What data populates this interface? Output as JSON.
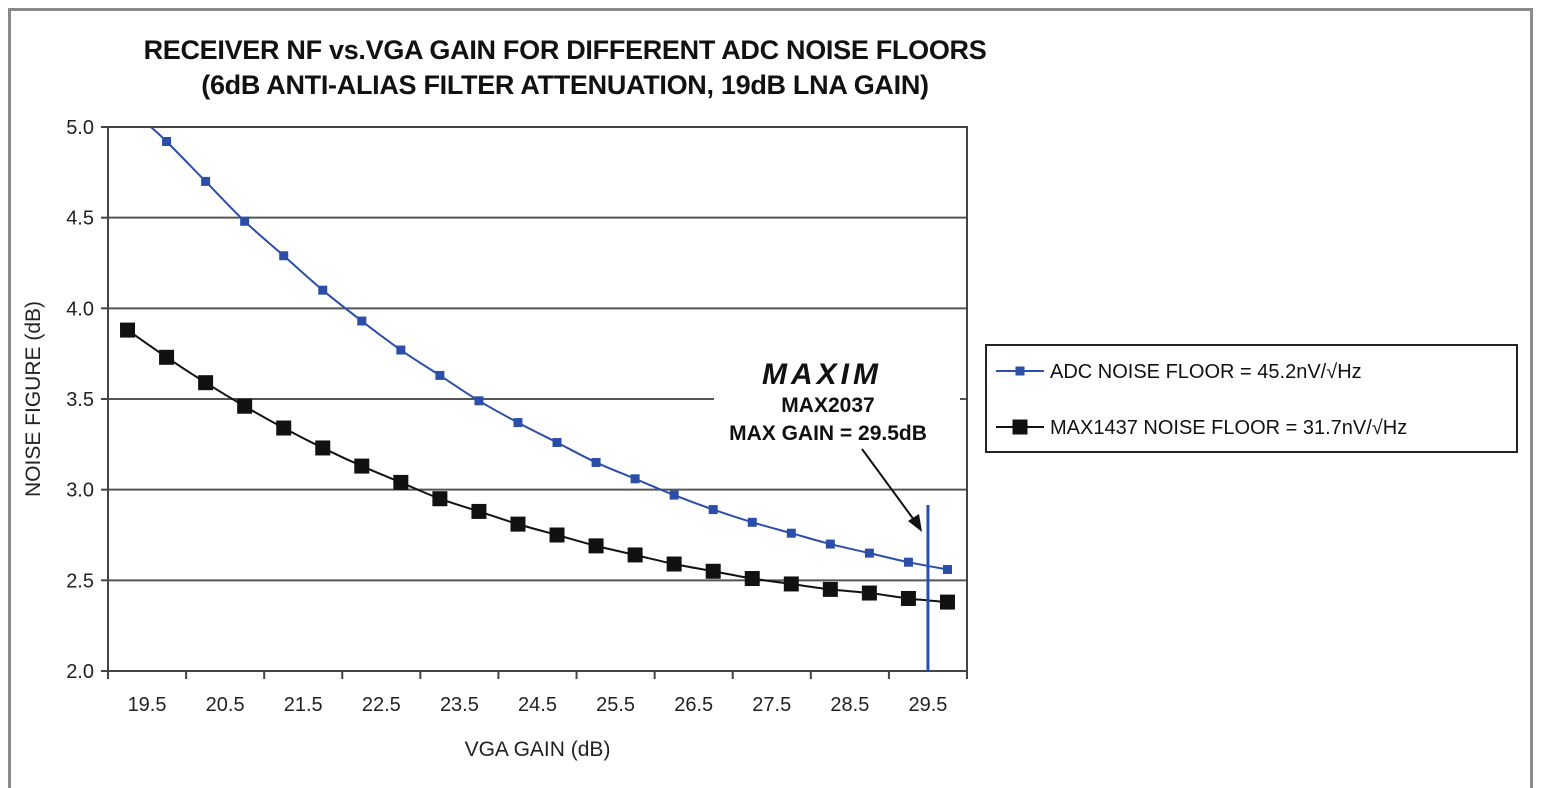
{
  "chart_data": {
    "type": "line",
    "title": "RECEIVER NF vs.VGA GAIN FOR DIFFERENT ADC NOISE FLOORS",
    "subtitle": "(6dB ANTI-ALIAS FILTER ATTENUATION, 19dB LNA GAIN)",
    "xlabel": "VGA GAIN (dB)",
    "ylabel": "NOISE FIGURE (dB)",
    "xlim": [
      19,
      30
    ],
    "ylim": [
      2.0,
      5.0
    ],
    "yticks": [
      "2.0",
      "2.5",
      "3.0",
      "3.5",
      "4.0",
      "4.5",
      "5.0"
    ],
    "xticks": [
      "19.5",
      "20.5",
      "21.5",
      "22.5",
      "23.5",
      "24.5",
      "25.5",
      "26.5",
      "27.5",
      "28.5",
      "29.5"
    ],
    "grid": "horizontal",
    "legend_position": "right",
    "series": [
      {
        "name": "ADC NOISE FLOOR = 45.2nV/√Hz",
        "color": "#2b4fa8",
        "marker": "small-square",
        "x": [
          19.75,
          20.25,
          20.75,
          21.25,
          21.75,
          22.25,
          22.75,
          23.25,
          23.75,
          24.25,
          24.75,
          25.25,
          25.75,
          26.25,
          26.75,
          27.25,
          27.75,
          28.25,
          28.75,
          29.25,
          29.75
        ],
        "y": [
          4.92,
          4.7,
          4.48,
          4.29,
          4.1,
          3.93,
          3.77,
          3.63,
          3.49,
          3.37,
          3.26,
          3.15,
          3.06,
          2.97,
          2.89,
          2.82,
          2.76,
          2.7,
          2.65,
          2.6,
          2.56
        ],
        "line_start": [
          19.55,
          5.0
        ]
      },
      {
        "name": "MAX1437 NOISE FLOOR = 31.7nV/√Hz",
        "color": "#111111",
        "marker": "large-square",
        "x": [
          19.25,
          19.75,
          20.25,
          20.75,
          21.25,
          21.75,
          22.25,
          22.75,
          23.25,
          23.75,
          24.25,
          24.75,
          25.25,
          25.75,
          26.25,
          26.75,
          27.25,
          27.75,
          28.25,
          28.75,
          29.25,
          29.75
        ],
        "y": [
          3.88,
          3.73,
          3.59,
          3.46,
          3.34,
          3.23,
          3.13,
          3.04,
          2.95,
          2.88,
          2.81,
          2.75,
          2.69,
          2.64,
          2.59,
          2.55,
          2.51,
          2.48,
          2.45,
          2.43,
          2.4,
          2.38
        ]
      }
    ],
    "annotation": {
      "logo": "MAXIM",
      "line1": "MAX2037",
      "line2": "MAX GAIN = 29.5dB",
      "vline_x": 29.5,
      "vline_color": "#2b4fa8"
    }
  }
}
